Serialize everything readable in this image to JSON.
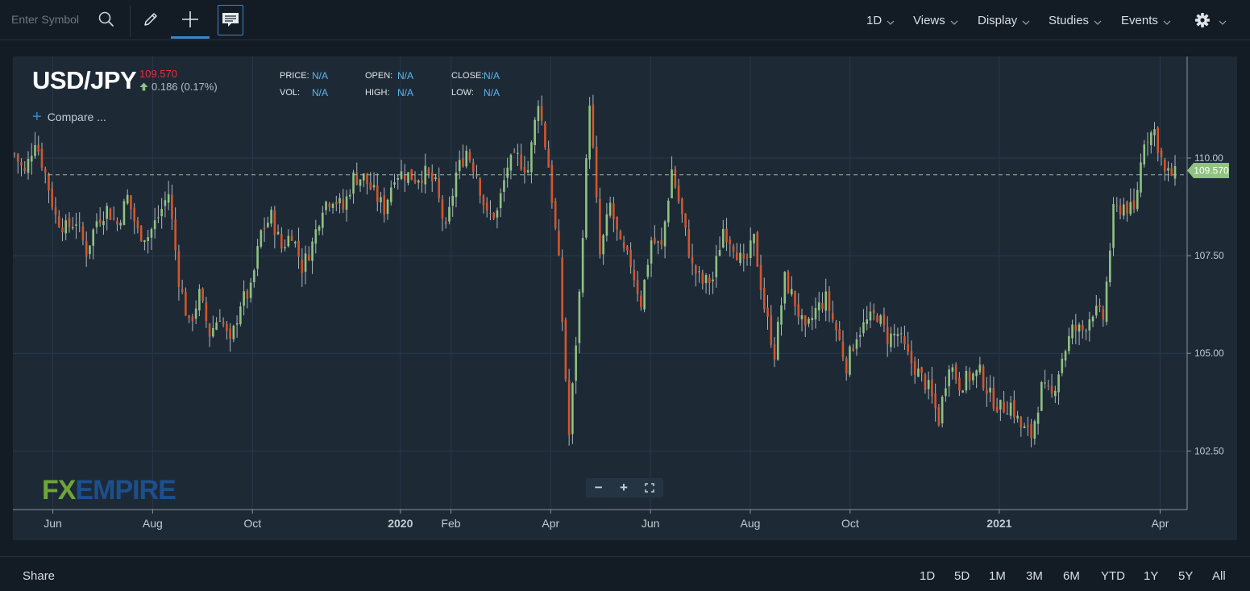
{
  "toolbar": {
    "symbol_placeholder": "Enter Symbol",
    "menus": [
      {
        "label": "1D",
        "x": 1075
      },
      {
        "label": "Views",
        "x": 1133
      },
      {
        "label": "Display",
        "x": 1213
      },
      {
        "label": "Studies",
        "x": 1301
      },
      {
        "label": "Events",
        "x": 1391
      }
    ]
  },
  "symbol": {
    "name": "USD/JPY",
    "price": "109.570",
    "change": "0.186 (0.17%)"
  },
  "ohlc": {
    "price_label": "PRICE:",
    "price_value": "N/A",
    "vol_label": "VOL:",
    "vol_value": "N/A",
    "open_label": "OPEN:",
    "open_value": "N/A",
    "high_label": "HIGH:",
    "high_value": "N/A",
    "close_label": "CLOSE:",
    "close_value": "N/A",
    "low_label": "LOW:",
    "low_value": "N/A"
  },
  "compare_label": "Compare ...",
  "logo": {
    "fx": "FX",
    "empire": "EMPIRE"
  },
  "current_price_tag": "109.570",
  "footer": {
    "share_label": "Share",
    "ranges": [
      "1D",
      "5D",
      "1M",
      "3M",
      "6M",
      "YTD",
      "1Y",
      "5Y",
      "All"
    ]
  },
  "colors": {
    "up_candle": "#8fc37f",
    "down_candle": "#d4552c",
    "wick": "#c9ced3",
    "price_tag": "#8fc37f",
    "accent": "#3f86c9"
  },
  "chart_data": {
    "type": "line",
    "title": "USD/JPY",
    "style": "candlestick",
    "x_tick_labels": [
      "Jun",
      "Aug",
      "Oct",
      "2020",
      "Feb",
      "Apr",
      "Jun",
      "Aug",
      "Oct",
      "2021",
      "Apr"
    ],
    "x_ticks": [
      {
        "label": "Jun",
        "bold": false,
        "t": 0.034
      },
      {
        "label": "Aug",
        "bold": false,
        "t": 0.119
      },
      {
        "label": "Oct",
        "bold": false,
        "t": 0.204
      },
      {
        "label": "2020",
        "bold": true,
        "t": 0.33
      },
      {
        "label": "Feb",
        "bold": false,
        "t": 0.373
      },
      {
        "label": "Apr",
        "bold": false,
        "t": 0.458
      },
      {
        "label": "Jun",
        "bold": false,
        "t": 0.543
      },
      {
        "label": "Aug",
        "bold": false,
        "t": 0.628
      },
      {
        "label": "Oct",
        "bold": false,
        "t": 0.713
      },
      {
        "label": "2021",
        "bold": true,
        "t": 0.84
      },
      {
        "label": "Apr",
        "bold": false,
        "t": 0.977
      }
    ],
    "y_ticks": [
      "110.00",
      "107.50",
      "105.00",
      "102.50"
    ],
    "ylim": [
      101.0,
      112.6
    ],
    "grid": true,
    "current_price": 109.57,
    "series": [
      {
        "values": [
          110.1,
          109.6,
          110.5,
          109.6,
          108.5,
          108.2,
          108.4,
          107.6,
          108.4,
          108.7,
          108.3,
          109.0,
          108.1,
          108.0,
          108.5,
          109.1,
          106.9,
          105.7,
          106.5,
          105.5,
          106.0,
          105.2,
          106.3,
          106.6,
          108.1,
          108.5,
          107.7,
          108.1,
          107.2,
          107.8,
          108.8,
          109.0,
          108.7,
          109.5,
          109.5,
          109.1,
          108.7,
          109.6,
          109.6,
          109.5,
          109.6,
          109.3,
          108.1,
          109.6,
          110.2,
          109.6,
          108.5,
          108.6,
          109.8,
          110.0,
          109.7,
          111.5,
          109.8,
          107.3,
          102.9,
          106.5,
          111.5,
          107.5,
          108.8,
          107.7,
          107.3,
          106.3,
          107.9,
          107.7,
          109.7,
          108.5,
          107.2,
          106.8,
          106.9,
          108.2,
          107.8,
          107.2,
          107.9,
          106.2,
          105.0,
          106.9,
          106.3,
          105.5,
          106.1,
          106.4,
          105.6,
          104.7,
          105.5,
          105.8,
          106.0,
          105.4,
          105.5,
          104.9,
          104.5,
          104.1,
          103.3,
          104.8,
          104.2,
          104.4,
          104.5,
          103.9,
          103.6,
          103.7,
          103.1,
          102.9,
          104.1,
          103.9,
          104.9,
          105.6,
          105.6,
          106.1,
          105.9,
          108.6,
          108.8,
          108.6,
          110.5,
          110.7,
          109.6,
          109.57
        ]
      }
    ]
  }
}
